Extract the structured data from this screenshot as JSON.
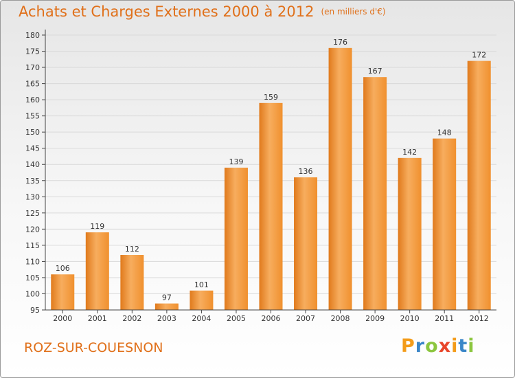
{
  "title": "Achats et Charges Externes 2000 à 2012",
  "unit": "(en milliers d'€)",
  "place": "ROZ-SUR-COUESNON",
  "logo": {
    "letters": [
      "P",
      "r",
      "o",
      "x",
      "i",
      "t",
      "i"
    ],
    "colors": [
      "#f39c1a",
      "#3a86c8",
      "#8cc63f",
      "#e8452a",
      "#f39c1a",
      "#3a86c8",
      "#8cc63f"
    ]
  },
  "chart_data": {
    "type": "bar",
    "categories": [
      "2000",
      "2001",
      "2002",
      "2003",
      "2004",
      "2005",
      "2006",
      "2007",
      "2008",
      "2009",
      "2010",
      "2011",
      "2012"
    ],
    "values": [
      106,
      119,
      112,
      97,
      101,
      139,
      159,
      136,
      176,
      167,
      142,
      148,
      172
    ],
    "ylim": [
      95,
      180
    ],
    "yticks": [
      95,
      100,
      105,
      110,
      115,
      120,
      125,
      130,
      135,
      140,
      145,
      150,
      155,
      160,
      165,
      170,
      175,
      180
    ],
    "grid": true,
    "colors": {
      "bar": "#f0902e",
      "bar_dark": "#e07a1c",
      "bar_light": "#f7ad5e",
      "grid": "#d9d9d9",
      "axis": "#444444"
    }
  }
}
